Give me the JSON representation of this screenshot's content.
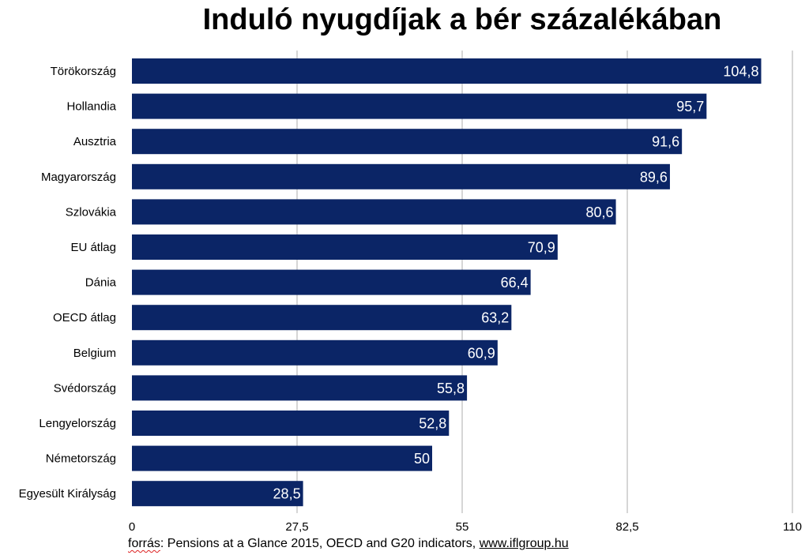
{
  "chart_data": {
    "type": "bar",
    "orientation": "horizontal",
    "title": "Induló nyugdíjak a bér százalékában",
    "categories": [
      "Törökország",
      "Hollandia",
      "Ausztria",
      "Magyarország",
      "Szlovákia",
      "EU átlag",
      "Dánia",
      "OECD átlag",
      "Belgium",
      "Svédország",
      "Lengyelország",
      "Németország",
      "Egyesült Királyság"
    ],
    "values": [
      104.8,
      95.7,
      91.6,
      89.6,
      80.6,
      70.9,
      66.4,
      63.2,
      60.9,
      55.8,
      52.8,
      50,
      28.5
    ],
    "value_labels": [
      "104,8",
      "95,7",
      "91,6",
      "89,6",
      "80,6",
      "70,9",
      "66,4",
      "63,2",
      "60,9",
      "55,8",
      "52,8",
      "50",
      "28,5"
    ],
    "xlim": [
      0,
      110
    ],
    "xticks": [
      0,
      27.5,
      55,
      82.5,
      110
    ],
    "xtick_labels": [
      "0",
      "27,5",
      "55",
      "82,5",
      "110"
    ],
    "xlabel": "",
    "ylabel": "",
    "grid": true,
    "legend": "none",
    "colors": {
      "bar": "#0b2566",
      "grid": "#c8c8c8",
      "value_text": "#ffffff"
    }
  },
  "source": {
    "prefix": "forrás",
    "text": ": Pensions at a Glance 2015, OECD and G20 indicators, ",
    "link": "www.iflgroup.hu"
  }
}
